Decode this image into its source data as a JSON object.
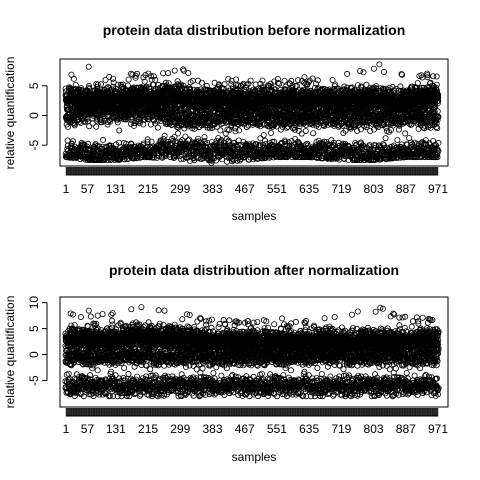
{
  "chart_data": [
    {
      "type": "scatter",
      "title": "protein data distribution before normalization",
      "xlabel": "samples",
      "ylabel": "relative quantification",
      "xlim": [
        1,
        971
      ],
      "ylim": [
        -8,
        9
      ],
      "x_ticks": [
        1,
        57,
        131,
        215,
        299,
        383,
        467,
        551,
        635,
        719,
        803,
        887,
        971
      ],
      "y_ticks": [
        -5,
        0,
        5
      ],
      "grid": false,
      "legend": "none",
      "marker": "open-circle",
      "color": "#000000",
      "series": [
        {
          "values_by_sample": {
            "x": [
              1,
              57,
              131,
              215,
              299,
              383,
              467,
              551,
              635,
              719,
              803,
              887,
              971
            ],
            "upper_band_y": [
              3.0,
              2.5,
              2.5,
              3.0,
              3.0,
              2.5,
              2.5,
              2.5,
              2.5,
              2.5,
              2.5,
              2.5,
              3.0
            ],
            "middle_band_y": [
              -0.5,
              0.5,
              0.5,
              0.5,
              -0.5,
              -0.5,
              -0.5,
              -0.5,
              -0.5,
              -0.5,
              -0.5,
              -0.5,
              -0.5
            ],
            "lower_band_y": [
              -6.0,
              -6.5,
              -6.5,
              -6.0,
              -5.5,
              -6.0,
              -6.0,
              -6.0,
              -6.0,
              -6.0,
              -6.5,
              -6.0,
              -6.0
            ],
            "max_y": [
              6.5,
              8.5,
              7.0,
              7.5,
              8.0,
              6.5,
              6.0,
              6.5,
              6.5,
              7.0,
              9.0,
              7.5,
              7.0
            ],
            "min_y": [
              -7.0,
              -7.5,
              -7.5,
              -7.0,
              -7.5,
              -8.0,
              -7.5,
              -7.0,
              -7.0,
              -7.5,
              -7.5,
              -7.0,
              -7.0
            ]
          }
        }
      ]
    },
    {
      "type": "scatter",
      "title": "protein data distribution after normalization",
      "xlabel": "samples",
      "ylabel": "relative quantification",
      "xlim": [
        1,
        971
      ],
      "ylim": [
        -9.5,
        10.5
      ],
      "x_ticks": [
        1,
        57,
        131,
        215,
        299,
        383,
        467,
        551,
        635,
        719,
        803,
        887,
        971
      ],
      "y_ticks": [
        -5,
        0,
        5,
        10
      ],
      "grid": false,
      "legend": "none",
      "marker": "open-circle",
      "color": "#000000",
      "series": [
        {
          "values_by_sample": {
            "x": [
              1,
              57,
              131,
              215,
              299,
              383,
              467,
              551,
              635,
              719,
              803,
              887,
              971
            ],
            "upper_band_y": [
              3.0,
              3.0,
              3.0,
              3.5,
              3.0,
              2.5,
              2.5,
              2.5,
              2.5,
              2.5,
              2.5,
              2.5,
              3.0
            ],
            "middle_band_y": [
              -0.5,
              -0.5,
              -0.5,
              -0.5,
              -0.5,
              -0.5,
              -0.5,
              -0.5,
              -0.5,
              -0.5,
              -0.5,
              -0.5,
              -0.5
            ],
            "lower_band_y": [
              -6.0,
              -6.0,
              -6.0,
              -6.0,
              -6.0,
              -6.0,
              -6.0,
              -6.0,
              -6.0,
              -6.0,
              -6.0,
              -6.0,
              -6.0
            ],
            "max_y": [
              8.0,
              8.5,
              8.5,
              9.5,
              8.0,
              7.0,
              6.5,
              7.0,
              7.0,
              7.5,
              9.5,
              7.5,
              7.0
            ],
            "min_y": [
              -8.0,
              -8.0,
              -8.0,
              -8.0,
              -8.0,
              -8.0,
              -8.0,
              -8.0,
              -8.0,
              -8.0,
              -8.0,
              -8.0,
              -8.0
            ]
          }
        }
      ]
    }
  ]
}
